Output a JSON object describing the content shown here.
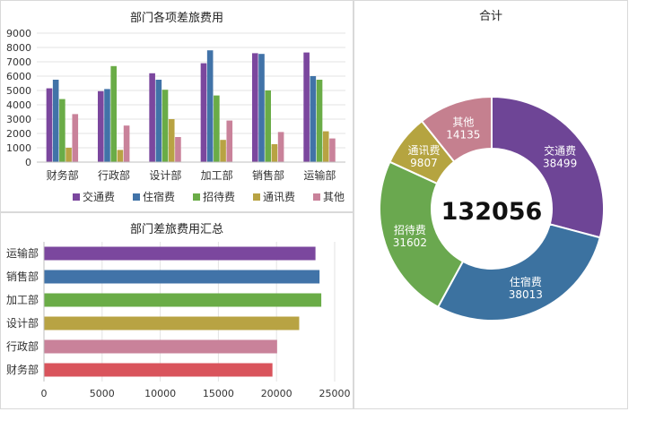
{
  "colors": {
    "series": [
      "#7b479e",
      "#4173a8",
      "#6aac47",
      "#b8a343",
      "#c9829a"
    ],
    "hbar": [
      "#d9545c",
      "#c9829a",
      "#b8a343",
      "#6aac47",
      "#4173a8",
      "#7b479e"
    ],
    "donut": [
      "#6e4596",
      "#3c72a0",
      "#6aa84f",
      "#b5a440",
      "#c5808f"
    ]
  },
  "chart_data": [
    {
      "type": "bar",
      "title": "部门各项差旅费用",
      "categories": [
        "财务部",
        "行政部",
        "设计部",
        "加工部",
        "销售部",
        "运输部"
      ],
      "yticks": [
        "0",
        "1000",
        "2000",
        "3000",
        "4000",
        "5000",
        "6000",
        "7000",
        "8000",
        "9000"
      ],
      "ylim": [
        0,
        9000
      ],
      "legend_position": "bottom",
      "series": [
        {
          "name": "交通费",
          "values": [
            5150,
            4950,
            6200,
            6900,
            7600,
            7650
          ]
        },
        {
          "name": "住宿费",
          "values": [
            5750,
            5100,
            5750,
            7800,
            7550,
            6000
          ]
        },
        {
          "name": "招待费",
          "values": [
            4400,
            6700,
            5050,
            4650,
            5000,
            5750
          ]
        },
        {
          "name": "通讯费",
          "values": [
            1000,
            850,
            3000,
            1550,
            1250,
            2150
          ]
        },
        {
          "name": "其他",
          "values": [
            3350,
            2550,
            1750,
            2900,
            2100,
            1650
          ]
        }
      ]
    },
    {
      "type": "bar",
      "orientation": "horizontal",
      "title": "部门差旅费用汇总",
      "categories": [
        "财务部",
        "行政部",
        "设计部",
        "加工部",
        "销售部",
        "运输部"
      ],
      "values": [
        19650,
        20050,
        21950,
        23850,
        23700,
        23350
      ],
      "xticks": [
        "0",
        "5000",
        "10000",
        "15000",
        "20000",
        "25000"
      ],
      "xlim": [
        0,
        25000
      ]
    },
    {
      "type": "pie",
      "style": "donut",
      "title": "合计",
      "center_label": "132056",
      "slices": [
        {
          "label": "交通费",
          "value": 38499,
          "value_label": "38499"
        },
        {
          "label": "住宿费",
          "value": 38013,
          "value_label": "38013"
        },
        {
          "label": "招待费",
          "value": 31602,
          "value_label": "31602"
        },
        {
          "label": "通讯费",
          "value": 9807,
          "value_label": "9807"
        },
        {
          "label": "其他",
          "value": 14135,
          "value_label": "14135"
        }
      ]
    }
  ]
}
